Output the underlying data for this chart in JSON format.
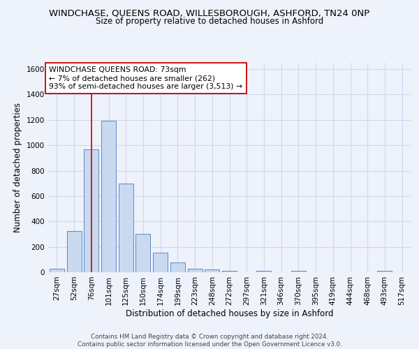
{
  "title": "WINDCHASE, QUEENS ROAD, WILLESBOROUGH, ASHFORD, TN24 0NP",
  "subtitle": "Size of property relative to detached houses in Ashford",
  "xlabel": "Distribution of detached houses by size in Ashford",
  "ylabel": "Number of detached properties",
  "footer_line1": "Contains HM Land Registry data © Crown copyright and database right 2024.",
  "footer_line2": "Contains public sector information licensed under the Open Government Licence v3.0.",
  "bar_labels": [
    "27sqm",
    "52sqm",
    "76sqm",
    "101sqm",
    "125sqm",
    "150sqm",
    "174sqm",
    "199sqm",
    "223sqm",
    "248sqm",
    "272sqm",
    "297sqm",
    "321sqm",
    "346sqm",
    "370sqm",
    "395sqm",
    "419sqm",
    "444sqm",
    "468sqm",
    "493sqm",
    "517sqm"
  ],
  "bar_values": [
    27,
    325,
    970,
    1195,
    700,
    305,
    153,
    75,
    30,
    20,
    13,
    0,
    10,
    0,
    13,
    0,
    0,
    0,
    0,
    13,
    0
  ],
  "bar_color": "#c9d9f0",
  "bar_edge_color": "#5b8ac5",
  "vline_x": 2,
  "vline_color": "#cc0000",
  "annotation_text": "WINDCHASE QUEENS ROAD: 73sqm\n← 7% of detached houses are smaller (262)\n93% of semi-detached houses are larger (3,513) →",
  "annotation_box_color": "#ffffff",
  "annotation_box_edgecolor": "#cc0000",
  "ylim": [
    0,
    1650
  ],
  "yticks": [
    0,
    200,
    400,
    600,
    800,
    1000,
    1200,
    1400,
    1600
  ],
  "bg_color": "#eef2fb",
  "grid_color": "#d0d8ee",
  "title_fontsize": 9.5,
  "subtitle_fontsize": 8.5,
  "axis_label_fontsize": 8.5,
  "tick_fontsize": 7.5
}
